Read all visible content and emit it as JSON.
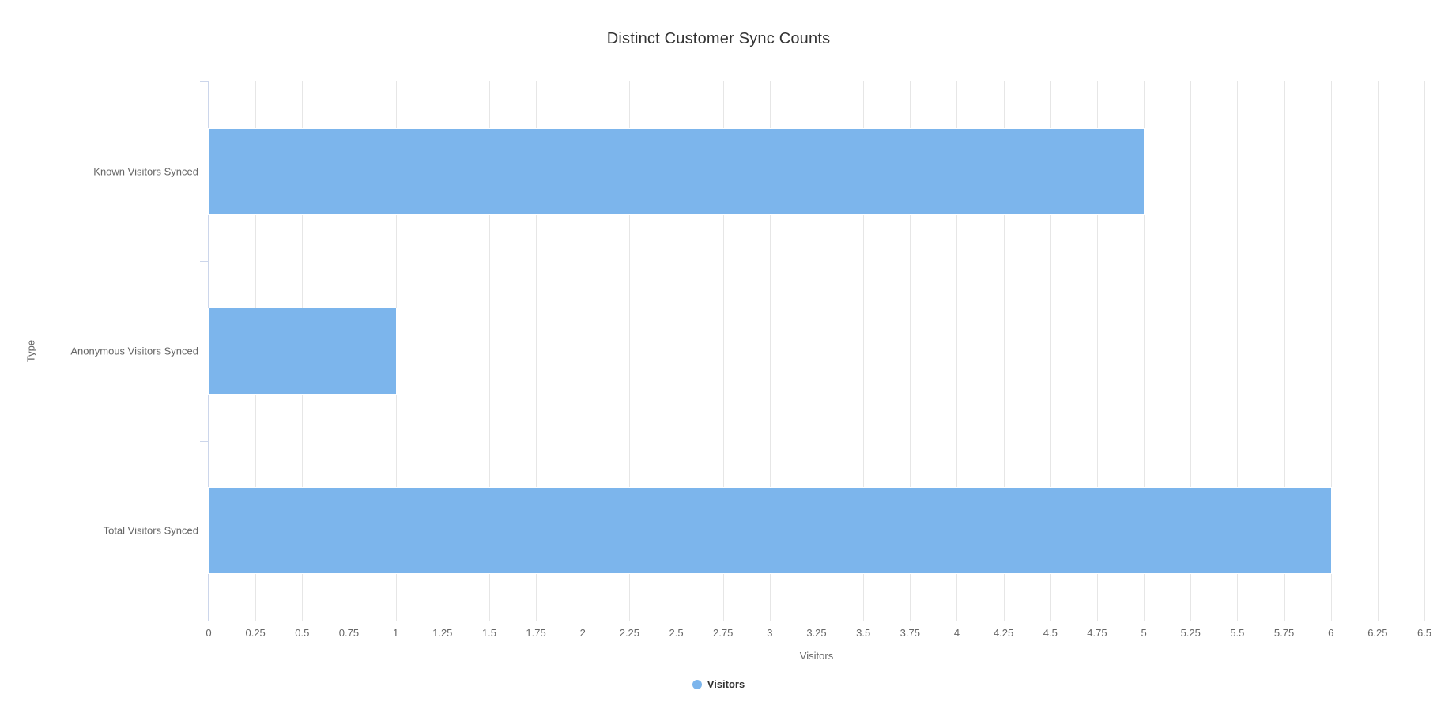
{
  "chart_data": {
    "type": "bar",
    "orientation": "horizontal",
    "title": "Distinct Customer Sync Counts",
    "categories": [
      "Known Visitors Synced",
      "Anonymous Visitors Synced",
      "Total Visitors Synced"
    ],
    "series": [
      {
        "name": "Visitors",
        "values": [
          5,
          1,
          6
        ]
      }
    ],
    "xlabel": "Visitors",
    "ylabel": "Type",
    "xlim": [
      0,
      6.5
    ],
    "xtick_step": 0.25,
    "xtick_labels": [
      "0",
      "0.25",
      "0.5",
      "0.75",
      "1",
      "1.25",
      "1.5",
      "1.75",
      "2",
      "2.25",
      "2.5",
      "2.75",
      "3",
      "3.25",
      "3.5",
      "3.75",
      "4",
      "4.25",
      "4.5",
      "4.75",
      "5",
      "5.25",
      "5.5",
      "5.75",
      "6",
      "6.25",
      "6.5"
    ],
    "grid": true,
    "legend": {
      "position": "bottom",
      "items": [
        {
          "label": "Visitors",
          "color": "#7cb5ec"
        }
      ]
    },
    "colors": {
      "bar_fill": "#7cb5ec",
      "bar_border": "#ffffff",
      "grid_line": "#e6e6e6",
      "axis_line": "#ccd6eb",
      "tick_label": "#666666",
      "axis_title": "#666666",
      "title_text": "#333333",
      "legend_text": "#333333",
      "background": "#ffffff"
    }
  }
}
